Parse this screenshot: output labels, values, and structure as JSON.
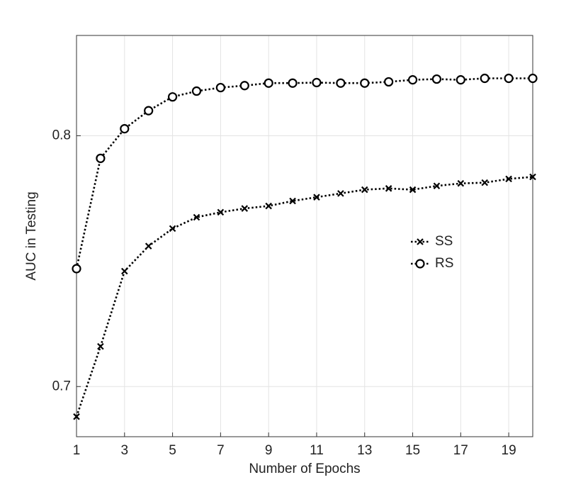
{
  "chart_data": {
    "type": "line",
    "x_label": "Number of Epochs",
    "y_label": "AUC in Testing",
    "x": [
      1,
      2,
      3,
      4,
      5,
      6,
      7,
      8,
      9,
      10,
      11,
      12,
      13,
      14,
      15,
      16,
      17,
      18,
      19,
      20
    ],
    "series": [
      {
        "name": "SS",
        "color": "#000000",
        "marker": "x",
        "linestyle": "dotted",
        "values": [
          0.688,
          0.716,
          0.746,
          0.756,
          0.763,
          0.7675,
          0.7695,
          0.771,
          0.772,
          0.774,
          0.7755,
          0.777,
          0.7785,
          0.779,
          0.7785,
          0.78,
          0.781,
          0.7813,
          0.7828,
          0.7836
        ]
      },
      {
        "name": "RS",
        "color": "#000000",
        "marker": "o",
        "linestyle": "dotted",
        "values": [
          0.747,
          0.791,
          0.8028,
          0.81,
          0.8155,
          0.8178,
          0.8192,
          0.82,
          0.821,
          0.821,
          0.8212,
          0.821,
          0.821,
          0.8215,
          0.8223,
          0.8226,
          0.8223,
          0.8229,
          0.8229,
          0.8229
        ]
      }
    ],
    "xlim": [
      1,
      20
    ],
    "xticks": [
      1,
      3,
      5,
      7,
      9,
      11,
      13,
      15,
      17,
      19
    ],
    "ylim": [
      0.68,
      0.84
    ],
    "yticks": [
      0.7,
      0.8
    ],
    "grid": true,
    "legend": "right"
  }
}
